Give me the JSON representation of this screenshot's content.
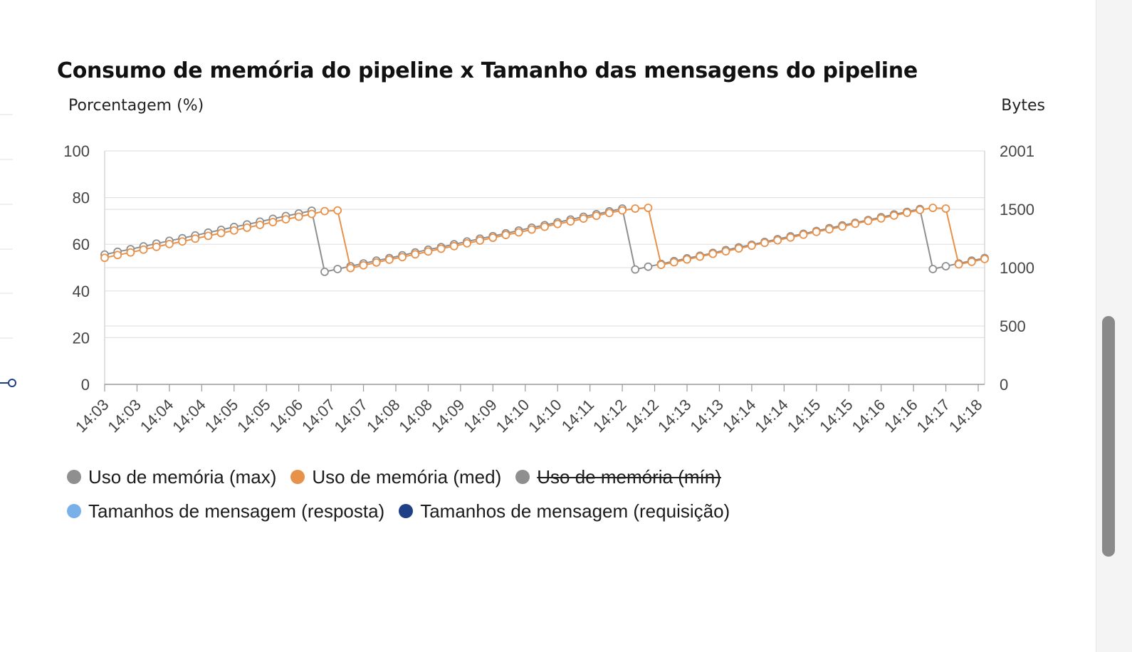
{
  "chart_data": {
    "type": "line",
    "title": "Consumo de memória do pipeline x Tamanho das mensagens do pipeline",
    "ylabel_left": "Porcentagem (%)",
    "ylabel_right": "Bytes",
    "ylim_left": [
      0,
      100
    ],
    "ylim_right": [
      0,
      2001
    ],
    "yticks_left": [
      "100",
      "80",
      "60",
      "40",
      "20",
      "0"
    ],
    "yticks_right": [
      "2001",
      "1500",
      "1000",
      "500",
      "0"
    ],
    "x_tick_labels": [
      "14:03",
      "14:03",
      "14:04",
      "14:04",
      "14:05",
      "14:05",
      "14:06",
      "14:07",
      "14:07",
      "14:08",
      "14:08",
      "14:09",
      "14:09",
      "14:10",
      "14:10",
      "14:11",
      "14:12",
      "14:12",
      "14:13",
      "14:13",
      "14:14",
      "14:14",
      "14:15",
      "14:15",
      "14:16",
      "14:16",
      "14:17",
      "14:18"
    ],
    "grid": true,
    "legend_position": "bottom-left",
    "series": [
      {
        "name": "Uso de memória (max)",
        "color": "#8f8f8f",
        "hidden": false,
        "axis": "left",
        "values": [
          55.6,
          56.8,
          57.9,
          59.1,
          60.3,
          61.5,
          62.6,
          63.8,
          65.0,
          66.2,
          67.4,
          68.5,
          69.7,
          70.9,
          72.1,
          73.2,
          74.4,
          48.2,
          49.4,
          50.6,
          51.8,
          53.0,
          54.1,
          55.3,
          56.5,
          57.7,
          58.8,
          60.0,
          61.2,
          62.4,
          63.5,
          64.7,
          65.9,
          67.1,
          68.2,
          69.4,
          70.6,
          71.8,
          72.9,
          74.1,
          75.3,
          49.2,
          50.4,
          51.6,
          52.8,
          54.0,
          55.1,
          56.3,
          57.5,
          58.7,
          59.8,
          61.0,
          62.2,
          63.4,
          64.5,
          65.7,
          66.9,
          68.1,
          69.2,
          70.4,
          71.6,
          72.8,
          73.9,
          75.1,
          49.4,
          50.6,
          51.8,
          53.0,
          54.1
        ]
      },
      {
        "name": "Uso de memória (med)",
        "color": "#e8914a",
        "hidden": false,
        "axis": "left",
        "values": [
          54.2,
          55.4,
          56.5,
          57.7,
          58.9,
          60.1,
          61.2,
          62.4,
          63.6,
          64.8,
          65.9,
          67.1,
          68.3,
          69.5,
          70.7,
          71.8,
          73.0,
          74.2,
          74.5,
          49.8,
          51.0,
          52.2,
          53.4,
          54.5,
          55.7,
          56.9,
          58.1,
          59.2,
          60.4,
          61.6,
          62.8,
          64.0,
          65.1,
          66.3,
          67.5,
          68.7,
          69.8,
          71.0,
          72.2,
          73.4,
          74.5,
          75.3,
          75.6,
          51.2,
          52.3,
          53.5,
          54.7,
          55.9,
          57.0,
          58.2,
          59.4,
          60.6,
          61.7,
          62.9,
          64.1,
          65.3,
          66.4,
          67.6,
          68.8,
          70.0,
          71.1,
          72.3,
          73.5,
          74.7,
          75.6,
          75.3,
          51.4,
          52.5,
          53.7
        ]
      },
      {
        "name": "Uso de memória (mín)",
        "color": "#8f8f8f",
        "hidden": true,
        "axis": "left",
        "values": []
      },
      {
        "name": "Tamanhos de mensagem (resposta)",
        "color": "#7ab0ea",
        "hidden": false,
        "axis": "right",
        "values": []
      },
      {
        "name": "Tamanhos de mensagem (requisição)",
        "color": "#1f3f86",
        "hidden": false,
        "axis": "right",
        "values": []
      }
    ]
  }
}
